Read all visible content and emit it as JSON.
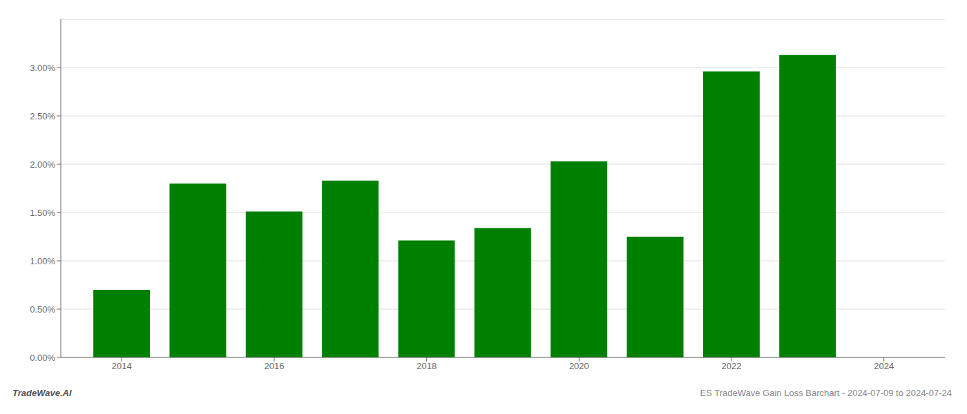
{
  "chart_data": {
    "type": "bar",
    "x": [
      2014,
      2015,
      2016,
      2017,
      2018,
      2019,
      2020,
      2021,
      2022,
      2023
    ],
    "values": [
      0.007,
      0.018,
      0.0151,
      0.0183,
      0.0121,
      0.0134,
      0.0203,
      0.0125,
      0.0296,
      0.0313
    ],
    "color": "#008000",
    "xlim": [
      2013.2,
      2024.8
    ],
    "xticks": [
      2014,
      2016,
      2018,
      2020,
      2022,
      2024
    ],
    "ylim": [
      0,
      0.035
    ],
    "yticks": [
      {
        "value": 0.0,
        "label": "0.00%"
      },
      {
        "value": 0.005,
        "label": "0.50%"
      },
      {
        "value": 0.01,
        "label": "1.00%"
      },
      {
        "value": 0.015,
        "label": "1.50%"
      },
      {
        "value": 0.02,
        "label": "2.00%"
      },
      {
        "value": 0.025,
        "label": "2.50%"
      },
      {
        "value": 0.03,
        "label": "3.00%"
      }
    ],
    "grid": "y",
    "annotations": [
      "TradeWave.AI",
      "ES TradeWave Gain Loss Barchart - 2024-07-09 to 2024-07-24"
    ]
  }
}
